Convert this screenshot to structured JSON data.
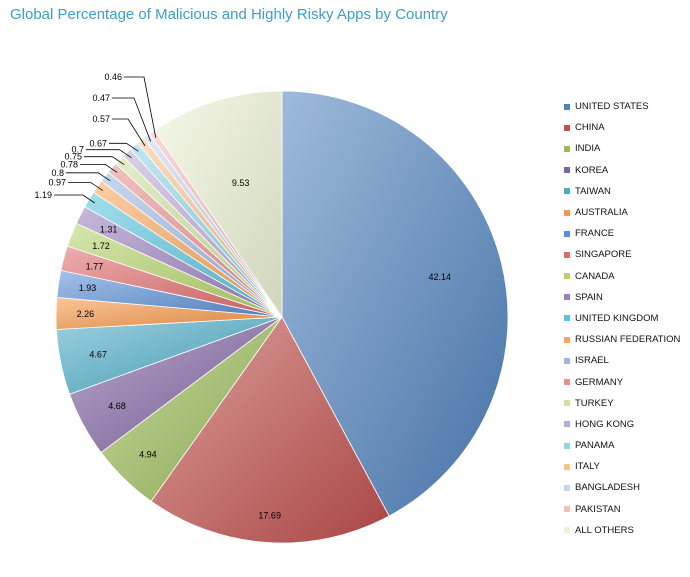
{
  "chart_data": {
    "type": "pie",
    "title": "Global Percentage of Malicious and Highly Risky Apps by Country",
    "legend_position": "right",
    "slices": [
      {
        "label": "UNITED STATES",
        "value": 42.14,
        "color": "#4f81bd"
      },
      {
        "label": "CHINA",
        "value": 17.69,
        "color": "#c0504d"
      },
      {
        "label": "INDIA",
        "value": 4.94,
        "color": "#9bbb59"
      },
      {
        "label": "KOREA",
        "value": 4.68,
        "color": "#8064a2"
      },
      {
        "label": "TAIWAN",
        "value": 4.67,
        "color": "#4bacc6"
      },
      {
        "label": "AUSTRALIA",
        "value": 2.26,
        "color": "#f79646"
      },
      {
        "label": "FRANCE",
        "value": 1.93,
        "color": "#5a8fd6"
      },
      {
        "label": "SINGAPORE",
        "value": 1.77,
        "color": "#e06b6b"
      },
      {
        "label": "CANADA",
        "value": 1.72,
        "color": "#b5d36a"
      },
      {
        "label": "SPAIN",
        "value": 1.31,
        "color": "#9a80bf"
      },
      {
        "label": "UNITED KINGDOM",
        "value": 1.19,
        "color": "#57c4dd"
      },
      {
        "label": "RUSSIAN FEDERATION",
        "value": 0.97,
        "color": "#f9a65a"
      },
      {
        "label": "ISRAEL",
        "value": 0.8,
        "color": "#9db8e0"
      },
      {
        "label": "GERMANY",
        "value": 0.78,
        "color": "#e8908d"
      },
      {
        "label": "TURKEY",
        "value": 0.75,
        "color": "#cde29e"
      },
      {
        "label": "HONG KONG",
        "value": 0.7,
        "color": "#bba9d4"
      },
      {
        "label": "PANAMA",
        "value": 0.67,
        "color": "#8fd6e8"
      },
      {
        "label": "ITALY",
        "value": 0.57,
        "color": "#fac18c"
      },
      {
        "label": "BANGLADESH",
        "value": 0.47,
        "color": "#c6d6ee"
      },
      {
        "label": "PAKISTAN",
        "value": 0.46,
        "color": "#f2c0bf"
      },
      {
        "label": "ALL OTHERS",
        "value": 9.53,
        "color": "#ecf3d6"
      }
    ],
    "data_labels": [
      "42.14",
      "17.69",
      "4.94",
      "4.68",
      "4.67",
      "2.26",
      "1.93",
      "1.77",
      "1.72",
      "1.31",
      "1.19",
      "0.97",
      "0.8",
      "0.78",
      "0.75",
      "0.7",
      "0.67",
      "0.57",
      "0.47",
      "0.46",
      "9.53"
    ]
  }
}
